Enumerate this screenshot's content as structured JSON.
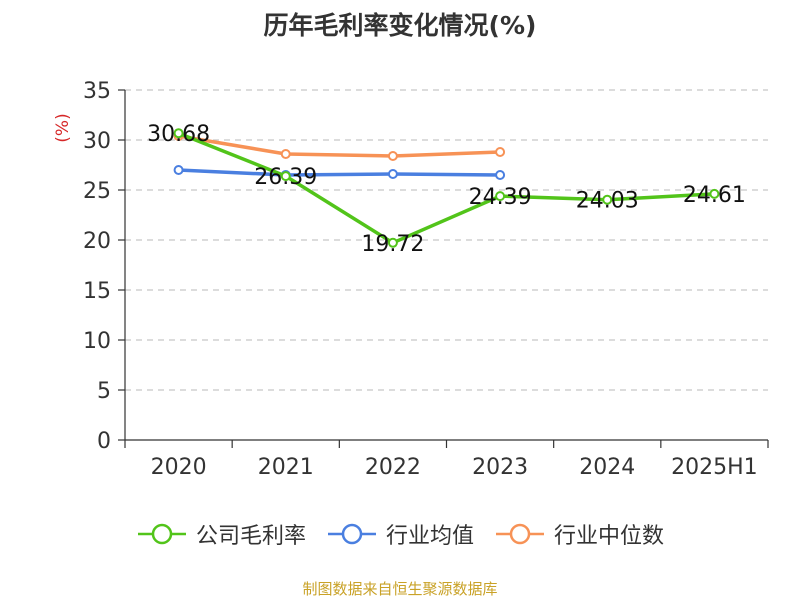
{
  "title": "历年毛利率变化情况(%)",
  "source": "制图数据来自恒生聚源数据库",
  "chart_data": {
    "type": "line",
    "title": "历年毛利率变化情况(%)",
    "ylabel": "(%)",
    "xlabel": "",
    "ylim": [
      0,
      35
    ],
    "yticks": [
      0,
      5,
      10,
      15,
      20,
      25,
      30,
      35
    ],
    "grid": true,
    "legend_position": "bottom",
    "categories": [
      "2020",
      "2021",
      "2022",
      "2023",
      "2024",
      "2025H1"
    ],
    "series": [
      {
        "name": "公司毛利率",
        "color": "#52c41a",
        "values": [
          30.68,
          26.39,
          19.72,
          24.39,
          24.03,
          24.61
        ],
        "labels": [
          "30.68",
          "26.39",
          "19.72",
          "24.39",
          "24.03",
          "24.61"
        ]
      },
      {
        "name": "行业均值",
        "color": "#4a7fe0",
        "values": [
          27.0,
          26.5,
          26.6,
          26.5,
          null,
          null
        ]
      },
      {
        "name": "行业中位数",
        "color": "#f79256",
        "values": [
          30.4,
          28.6,
          28.4,
          28.8,
          null,
          null
        ]
      }
    ]
  }
}
